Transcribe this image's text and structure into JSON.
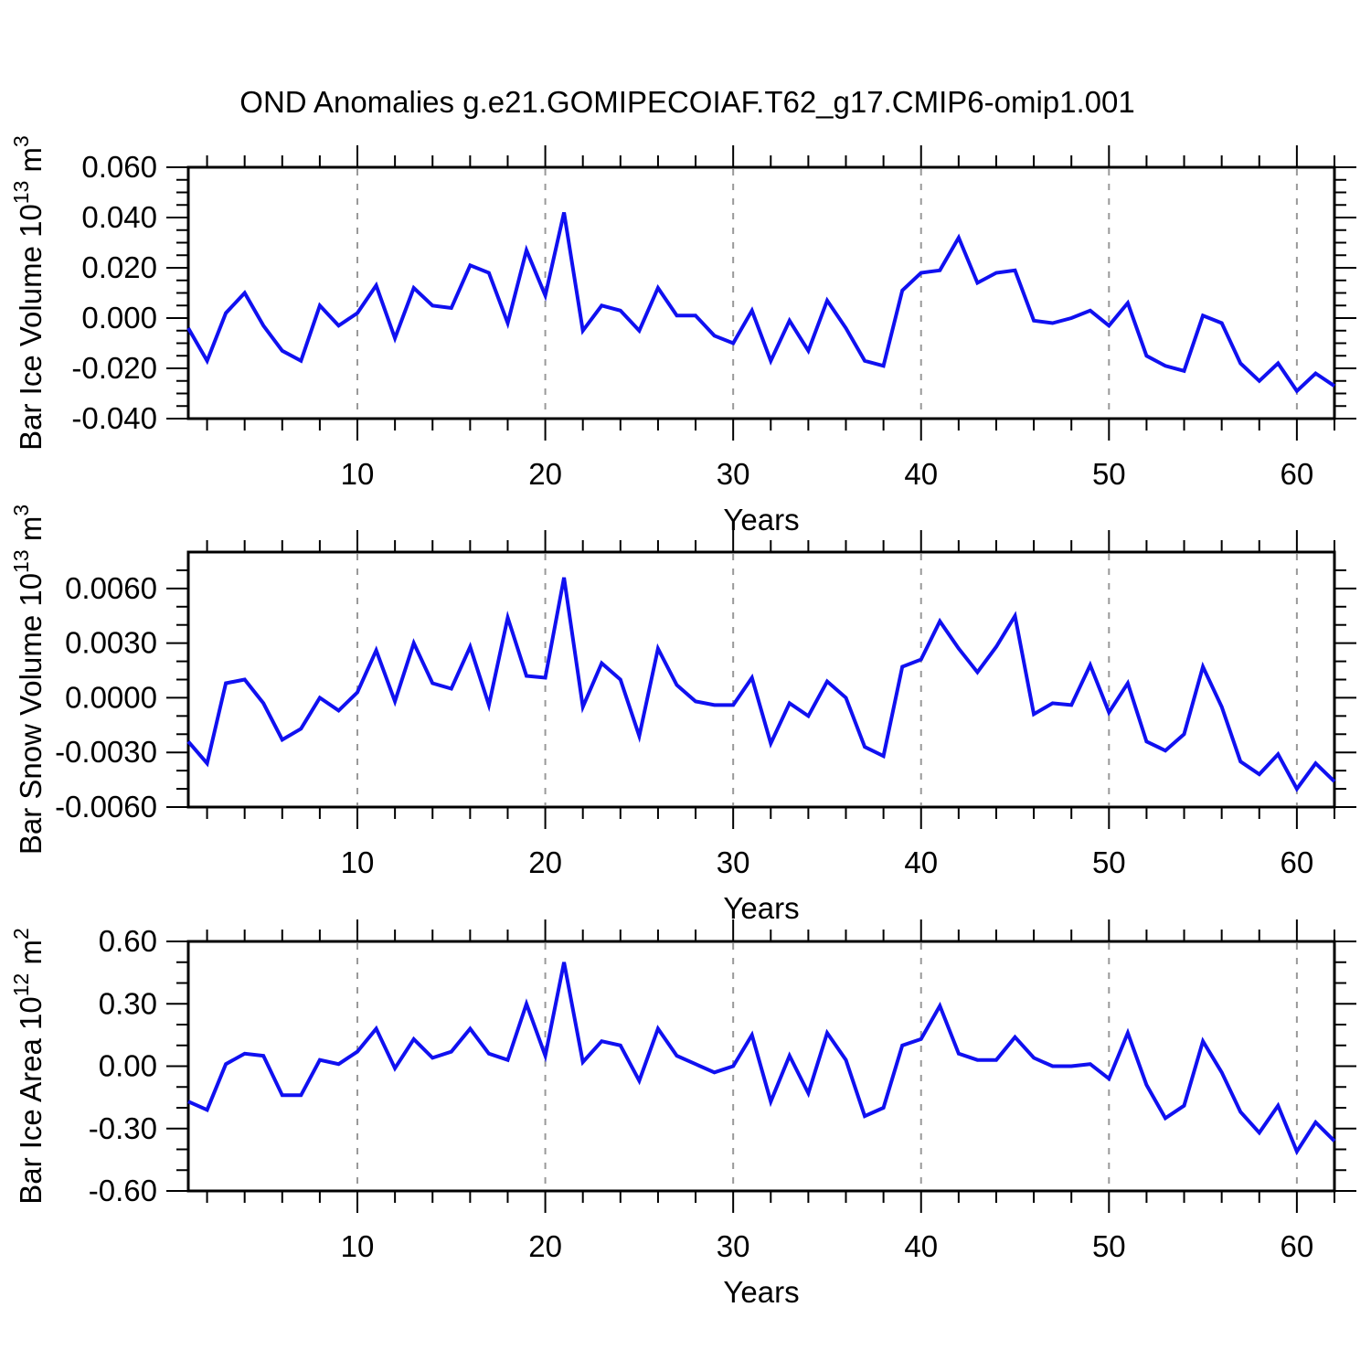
{
  "figure": {
    "title": "OND Anomalies g.e21.GOMIPECOIAF.T62_g17.CMIP6-omip1.001"
  },
  "colors": {
    "line": "#1010f0",
    "grid": "#999999",
    "axis": "#000000",
    "background": "#ffffff"
  },
  "chart_data": [
    {
      "type": "line",
      "title": "",
      "xlabel": "Years",
      "ylabel": {
        "name": "Bar Ice Volume",
        "scale": "10",
        "scale_exp": "13",
        "unit": "m",
        "unit_exp": "3"
      },
      "ylim": [
        -0.04,
        0.06
      ],
      "y_major_ticks": [
        {
          "v": -0.04,
          "label": "-0.040"
        },
        {
          "v": -0.02,
          "label": "-0.020"
        },
        {
          "v": 0.0,
          "label": "0.000"
        },
        {
          "v": 0.02,
          "label": "0.020"
        },
        {
          "v": 0.04,
          "label": "0.040"
        },
        {
          "v": 0.06,
          "label": "0.060"
        }
      ],
      "y_minor_step": 0.005,
      "x": {
        "min": 1,
        "max": 62,
        "major_ticks": [
          10,
          20,
          30,
          40,
          50,
          60
        ],
        "minor_step": 2,
        "gridlines": true
      },
      "x_start": 1,
      "values": [
        -0.004,
        -0.017,
        0.002,
        0.01,
        -0.003,
        -0.013,
        -0.017,
        0.005,
        -0.003,
        0.002,
        0.013,
        -0.008,
        0.012,
        0.005,
        0.004,
        0.021,
        0.018,
        -0.002,
        0.027,
        0.009,
        0.042,
        -0.005,
        0.005,
        0.003,
        -0.005,
        0.012,
        0.001,
        0.001,
        -0.007,
        -0.01,
        0.003,
        -0.017,
        -0.001,
        -0.013,
        0.007,
        -0.004,
        -0.017,
        -0.019,
        0.011,
        0.018,
        0.019,
        0.032,
        0.014,
        0.018,
        0.019,
        -0.001,
        -0.002,
        0.0,
        0.003,
        -0.003,
        0.006,
        -0.015,
        -0.019,
        -0.021,
        0.001,
        -0.002,
        -0.018,
        -0.025,
        -0.018,
        -0.029,
        -0.022,
        -0.027
      ]
    },
    {
      "type": "line",
      "title": "",
      "xlabel": "Years",
      "ylabel": {
        "name": "Bar Snow Volume",
        "scale": "10",
        "scale_exp": "13",
        "unit": "m",
        "unit_exp": "3"
      },
      "ylim": [
        -0.006,
        0.008
      ],
      "y_major_ticks": [
        {
          "v": -0.006,
          "label": "-0.0060"
        },
        {
          "v": -0.003,
          "label": "-0.0030"
        },
        {
          "v": 0.0,
          "label": "0.0000"
        },
        {
          "v": 0.003,
          "label": "0.0030"
        },
        {
          "v": 0.006,
          "label": "0.0060"
        }
      ],
      "y_minor_step": 0.001,
      "x": {
        "min": 1,
        "max": 62,
        "major_ticks": [
          10,
          20,
          30,
          40,
          50,
          60
        ],
        "minor_step": 2,
        "gridlines": true
      },
      "x_start": 1,
      "values": [
        -0.0024,
        -0.0036,
        0.0008,
        0.001,
        -0.0003,
        -0.0023,
        -0.0017,
        0.0,
        -0.0007,
        0.0003,
        0.0026,
        -0.0002,
        0.003,
        0.0008,
        0.0005,
        0.0028,
        -0.0004,
        0.0044,
        0.0012,
        0.0011,
        0.0066,
        -0.0005,
        0.0019,
        0.001,
        -0.0021,
        0.0027,
        0.0007,
        -0.0002,
        -0.0004,
        -0.0004,
        0.0011,
        -0.0025,
        -0.0003,
        -0.001,
        0.0009,
        0.0,
        -0.0027,
        -0.0032,
        0.0017,
        0.0021,
        0.0042,
        0.0027,
        0.0014,
        0.0028,
        0.0045,
        -0.0009,
        -0.0003,
        -0.0004,
        0.0018,
        -0.0008,
        0.0008,
        -0.0024,
        -0.0029,
        -0.002,
        0.0017,
        -0.0005,
        -0.0035,
        -0.0042,
        -0.0031,
        -0.005,
        -0.0036,
        -0.0046
      ]
    },
    {
      "type": "line",
      "title": "",
      "xlabel": "Years",
      "ylabel": {
        "name": "Bar Ice Area",
        "scale": "10",
        "scale_exp": "12",
        "unit": "m",
        "unit_exp": "2"
      },
      "ylim": [
        -0.6,
        0.6
      ],
      "y_major_ticks": [
        {
          "v": -0.6,
          "label": "-0.60"
        },
        {
          "v": -0.3,
          "label": "-0.30"
        },
        {
          "v": 0.0,
          "label": "0.00"
        },
        {
          "v": 0.3,
          "label": "0.30"
        },
        {
          "v": 0.6,
          "label": "0.60"
        }
      ],
      "y_minor_step": 0.1,
      "x": {
        "min": 1,
        "max": 62,
        "major_ticks": [
          10,
          20,
          30,
          40,
          50,
          60
        ],
        "minor_step": 2,
        "gridlines": true
      },
      "x_start": 1,
      "values": [
        -0.17,
        -0.21,
        0.01,
        0.06,
        0.05,
        -0.14,
        -0.14,
        0.03,
        0.01,
        0.07,
        0.18,
        -0.01,
        0.13,
        0.04,
        0.07,
        0.18,
        0.06,
        0.03,
        0.3,
        0.05,
        0.5,
        0.02,
        0.12,
        0.1,
        -0.07,
        0.18,
        0.05,
        0.01,
        -0.03,
        0.0,
        0.15,
        -0.17,
        0.05,
        -0.13,
        0.16,
        0.03,
        -0.24,
        -0.2,
        0.1,
        0.13,
        0.29,
        0.06,
        0.03,
        0.03,
        0.14,
        0.04,
        0.0,
        0.0,
        0.01,
        -0.06,
        0.16,
        -0.09,
        -0.25,
        -0.19,
        0.12,
        -0.03,
        -0.22,
        -0.32,
        -0.19,
        -0.41,
        -0.27,
        -0.36
      ]
    }
  ]
}
